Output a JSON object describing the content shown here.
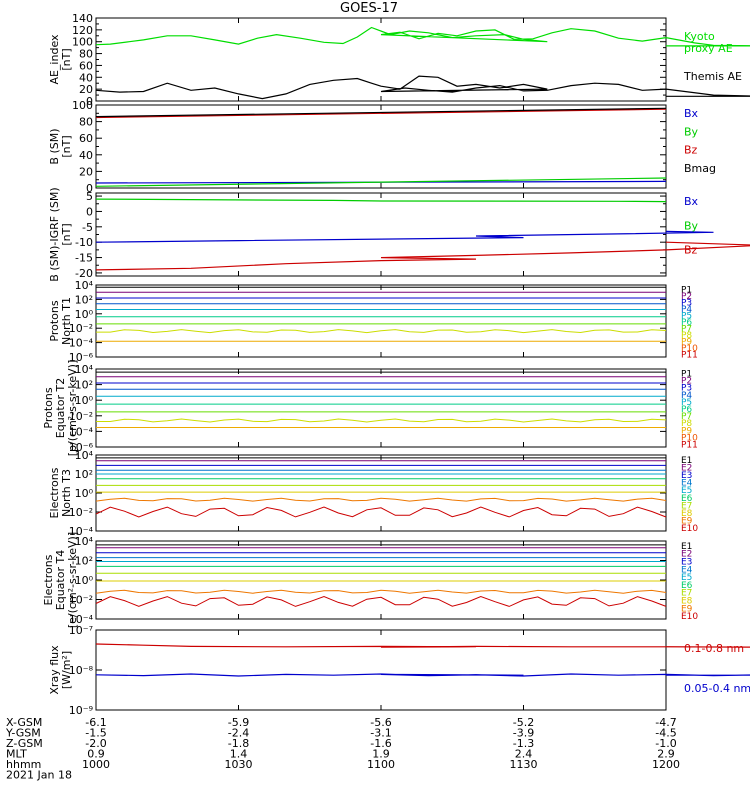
{
  "title": "GOES-17",
  "chart_data": [
    {
      "type": "line",
      "ylabel": [
        "AE_index",
        "[nT]"
      ],
      "yscale": "linear",
      "ylim": [
        0,
        140
      ],
      "yticks": [
        0,
        20,
        40,
        60,
        80,
        100,
        120,
        140
      ],
      "series": [
        {
          "name": "Kyoto proxy AE",
          "label_lines": [
            "Kyoto",
            "proxy AE"
          ],
          "color": "#00dd00",
          "x": [
            1000,
            1003,
            1007,
            1010,
            1015,
            1020,
            1025,
            1030,
            1034,
            1038,
            1043,
            1048,
            1052,
            1055,
            1058,
            1062,
            1066,
            1070,
            1075,
            1080,
            1086,
            1090,
            1095,
            1100,
            1104,
            1108,
            1112,
            1116,
            1120,
            1124,
            1128,
            1132,
            1136,
            1140,
            1145,
            1150,
            1155,
            1160,
            1166,
            1170,
            1180,
            1190,
            1200
          ],
          "y": [
            95,
            96,
            100,
            103,
            110,
            110,
            103,
            96,
            106,
            112,
            106,
            99,
            97,
            108,
            124,
            112,
            118,
            115,
            107,
            110,
            112,
            104,
            100,
            112,
            116,
            105,
            114,
            110,
            118,
            120,
            104,
            105,
            115,
            122,
            118,
            106,
            101,
            107,
            98,
            94,
            93,
            93,
            93
          ]
        },
        {
          "name": "Themis AE",
          "label_lines": [
            "Themis AE"
          ],
          "color": "#000000",
          "x": [
            1000,
            1005,
            1010,
            1015,
            1020,
            1025,
            1030,
            1035,
            1040,
            1045,
            1050,
            1055,
            1058,
            1060,
            1064,
            1068,
            1072,
            1076,
            1080,
            1085,
            1090,
            1095,
            1100,
            1105,
            1110,
            1115,
            1120,
            1125,
            1130,
            1135,
            1140,
            1145,
            1150,
            1155,
            1160,
            1165,
            1170,
            1180,
            1190,
            1200
          ],
          "y": [
            18,
            15,
            16,
            30,
            18,
            22,
            12,
            4,
            12,
            28,
            35,
            38,
            30,
            25,
            20,
            42,
            40,
            25,
            28,
            22,
            28,
            20,
            16,
            22,
            18,
            15,
            22,
            26,
            17,
            18,
            26,
            30,
            28,
            18,
            20,
            15,
            10,
            8,
            8,
            8
          ]
        }
      ]
    },
    {
      "type": "line",
      "ylabel": [
        "B (SM)",
        "[nT]"
      ],
      "yscale": "linear",
      "ylim": [
        0,
        100
      ],
      "yticks": [
        0,
        20,
        40,
        60,
        80,
        100
      ],
      "series": [
        {
          "name": "Bx",
          "color": "#0000cc",
          "x": [
            1000,
            1200
          ],
          "y": [
            6,
            8
          ]
        },
        {
          "name": "By",
          "color": "#00cc00",
          "x": [
            1000,
            1200
          ],
          "y": [
            2,
            12
          ]
        },
        {
          "name": "Bz",
          "color": "#cc0000",
          "x": [
            1000,
            1200
          ],
          "y": [
            85,
            95
          ]
        },
        {
          "name": "Bmag",
          "color": "#000000",
          "x": [
            1000,
            1200
          ],
          "y": [
            86,
            96
          ]
        }
      ]
    },
    {
      "type": "line",
      "ylabel": [
        "B (SM)-IGRF (SM)",
        "[nT]"
      ],
      "yscale": "linear",
      "ylim": [
        -21,
        6
      ],
      "yticks": [
        -20,
        -15,
        -10,
        -5,
        0,
        5
      ],
      "series": [
        {
          "name": "Bx",
          "color": "#0000cc",
          "x": [
            1000,
            1030,
            1060,
            1090,
            1120,
            1150,
            1170,
            1200
          ],
          "y": [
            -10,
            -9.5,
            -9,
            -8.5,
            -8,
            -7.3,
            -6.8,
            -6.5
          ]
        },
        {
          "name": "By",
          "color": "#00cc00",
          "x": [
            1000,
            1050,
            1100,
            1150,
            1200
          ],
          "y": [
            4,
            3.6,
            3.4,
            3.3,
            3.2
          ]
        },
        {
          "name": "Bz",
          "color": "#cc0000",
          "x": [
            1000,
            1020,
            1040,
            1060,
            1080,
            1100,
            1120,
            1140,
            1160,
            1180,
            1200
          ],
          "y": [
            -19,
            -18.5,
            -17,
            -16,
            -15.5,
            -15,
            -14.3,
            -13.5,
            -12.5,
            -11,
            -10
          ]
        }
      ]
    },
    {
      "type": "line",
      "ylabel": [
        "Protons",
        "North T1"
      ],
      "yscale": "log",
      "ylim": [
        -6,
        4
      ],
      "ytick_exps": [
        -6,
        -4,
        -2,
        0,
        2,
        4
      ],
      "channels": [
        {
          "name": "P1",
          "color": "#000000",
          "log10": 3.7
        },
        {
          "name": "P2",
          "color": "#7a0077",
          "log10": 3.0
        },
        {
          "name": "P3",
          "color": "#0000cc",
          "log10": 2.2
        },
        {
          "name": "P4",
          "color": "#0055cc",
          "log10": 1.4
        },
        {
          "name": "P5",
          "color": "#00aacc",
          "log10": 0.6
        },
        {
          "name": "P6",
          "color": "#00cc88",
          "log10": -0.4
        },
        {
          "name": "P7",
          "color": "#66dd00",
          "log10": -1.4
        },
        {
          "name": "P8",
          "color": "#ccdd00",
          "log10": -2.4
        },
        {
          "name": "P9",
          "color": "#eeaa00",
          "log10": -3.8
        },
        {
          "name": "P10",
          "color": "#ee5500",
          "log10": null
        },
        {
          "name": "P11",
          "color": "#cc0000",
          "log10": null
        }
      ]
    },
    {
      "type": "line",
      "ylabel": [
        "Protons",
        "Equator T2",
        "[p/(cm²-s-sr-keV)]"
      ],
      "yscale": "log",
      "ylim": [
        -6,
        4
      ],
      "ytick_exps": [
        -6,
        -4,
        -2,
        0,
        2,
        4
      ],
      "channels": [
        {
          "name": "P1",
          "color": "#000000",
          "log10": 3.6
        },
        {
          "name": "P2",
          "color": "#7a0077",
          "log10": 3.0
        },
        {
          "name": "P3",
          "color": "#0000cc",
          "log10": 2.2
        },
        {
          "name": "P4",
          "color": "#0055cc",
          "log10": 1.4
        },
        {
          "name": "P5",
          "color": "#00aacc",
          "log10": 0.5
        },
        {
          "name": "P6",
          "color": "#00cc88",
          "log10": -0.5
        },
        {
          "name": "P7",
          "color": "#66dd00",
          "log10": -1.5
        },
        {
          "name": "P8",
          "color": "#ccdd00",
          "log10": -2.6
        },
        {
          "name": "P9",
          "color": "#eeaa00",
          "log10": -3.5
        },
        {
          "name": "P10",
          "color": "#ee5500",
          "log10": null
        },
        {
          "name": "P11",
          "color": "#cc0000",
          "log10": null
        }
      ]
    },
    {
      "type": "line",
      "ylabel": [
        "Electrons",
        "North T3"
      ],
      "yscale": "log",
      "ylim": [
        -4,
        4
      ],
      "ytick_exps": [
        -4,
        -2,
        0,
        2,
        4
      ],
      "channels": [
        {
          "name": "E1",
          "color": "#000000",
          "log10": 3.7
        },
        {
          "name": "E2",
          "color": "#7a0077",
          "log10": 3.4
        },
        {
          "name": "E3",
          "color": "#0000cc",
          "log10": 2.9
        },
        {
          "name": "E4",
          "color": "#0077cc",
          "log10": 2.4
        },
        {
          "name": "E5",
          "color": "#00aacc",
          "log10": 2.0
        },
        {
          "name": "E6",
          "color": "#00cc66",
          "log10": 1.5
        },
        {
          "name": "E7",
          "color": "#aadd00",
          "log10": 0.8
        },
        {
          "name": "E8",
          "color": "#ddcc00",
          "log10": 0.1
        },
        {
          "name": "E9",
          "color": "#ee7700",
          "log10": -0.7
        },
        {
          "name": "E10",
          "color": "#cc0000",
          "log10": -2.0
        }
      ]
    },
    {
      "type": "line",
      "ylabel": [
        "Electrons",
        "Equator T4",
        "[e/(cm²-s-sr-keV)]"
      ],
      "yscale": "log",
      "ylim": [
        -4,
        4
      ],
      "ytick_exps": [
        -4,
        -2,
        0,
        2,
        4
      ],
      "channels": [
        {
          "name": "E1",
          "color": "#000000",
          "log10": 3.6
        },
        {
          "name": "E2",
          "color": "#7a0077",
          "log10": 3.3
        },
        {
          "name": "E3",
          "color": "#0000cc",
          "log10": 2.8
        },
        {
          "name": "E4",
          "color": "#0077cc",
          "log10": 2.3
        },
        {
          "name": "E5",
          "color": "#00aacc",
          "log10": 1.9
        },
        {
          "name": "E6",
          "color": "#00cc66",
          "log10": 1.4
        },
        {
          "name": "E7",
          "color": "#aadd00",
          "log10": 0.7
        },
        {
          "name": "E8",
          "color": "#ddcc00",
          "log10": -0.1
        },
        {
          "name": "E9",
          "color": "#ee7700",
          "log10": -1.2
        },
        {
          "name": "E10",
          "color": "#cc0000",
          "log10": -2.2
        }
      ]
    },
    {
      "type": "line",
      "ylabel": [
        "Xray flux",
        "[W/m²]"
      ],
      "yscale": "log",
      "ylim": [
        -9,
        -7
      ],
      "ytick_exps": [
        -9,
        -8,
        -7
      ],
      "series": [
        {
          "name": "0.1-0.8 nm",
          "color": "#cc0000",
          "x": [
            1000,
            1010,
            1020,
            1040,
            1060,
            1080,
            1100,
            1120,
            1140,
            1160,
            1180,
            1200
          ],
          "y": [
            -7.35,
            -7.38,
            -7.41,
            -7.42,
            -7.41,
            -7.42,
            -7.43,
            -7.41,
            -7.42,
            -7.42,
            -7.43,
            -7.42
          ]
        },
        {
          "name": "0.05-0.4 nm",
          "color": "#0000cc",
          "x": [
            1000,
            1010,
            1020,
            1030,
            1040,
            1050,
            1060,
            1070,
            1080,
            1090,
            1100,
            1110,
            1120,
            1130,
            1140,
            1150,
            1160,
            1170,
            1180,
            1190,
            1200
          ],
          "y": [
            -8.12,
            -8.14,
            -8.1,
            -8.15,
            -8.11,
            -8.13,
            -8.1,
            -8.14,
            -8.12,
            -8.13,
            -8.11,
            -8.14,
            -8.12,
            -8.15,
            -8.1,
            -8.13,
            -8.11,
            -8.14,
            -8.12,
            -8.13,
            -8.13
          ]
        }
      ]
    }
  ],
  "x_axis": {
    "ticks_hhmm": [
      1000,
      1030,
      1100,
      1130,
      1200
    ],
    "rows": [
      {
        "label": "X-GSM",
        "values": [
          "-6.1",
          "-5.9",
          "-5.6",
          "-5.2",
          "-4.7"
        ]
      },
      {
        "label": "Y-GSM",
        "values": [
          "-1.5",
          "-2.4",
          "-3.1",
          "-3.9",
          "-4.5"
        ]
      },
      {
        "label": "Z-GSM",
        "values": [
          "-2.0",
          "-1.8",
          "-1.6",
          "-1.3",
          "-1.0"
        ]
      },
      {
        "label": "MLT",
        "values": [
          "0.9",
          "1.4",
          "1.9",
          "2.4",
          "2.9"
        ]
      },
      {
        "label": "hhmm",
        "values": [
          "1000",
          "1030",
          "1100",
          "1130",
          "1200"
        ]
      }
    ],
    "date": "2021 Jan 18"
  }
}
